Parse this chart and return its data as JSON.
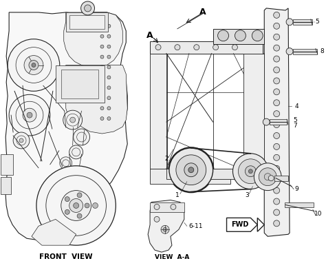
{
  "bg_color": "#ffffff",
  "line_color": "#222222",
  "front_view_label": "FRONT  VIEW",
  "view_aa_label": "VIEW  A-A",
  "fwd_label": "FWD",
  "figsize": [
    4.74,
    3.79
  ],
  "dpi": 100
}
